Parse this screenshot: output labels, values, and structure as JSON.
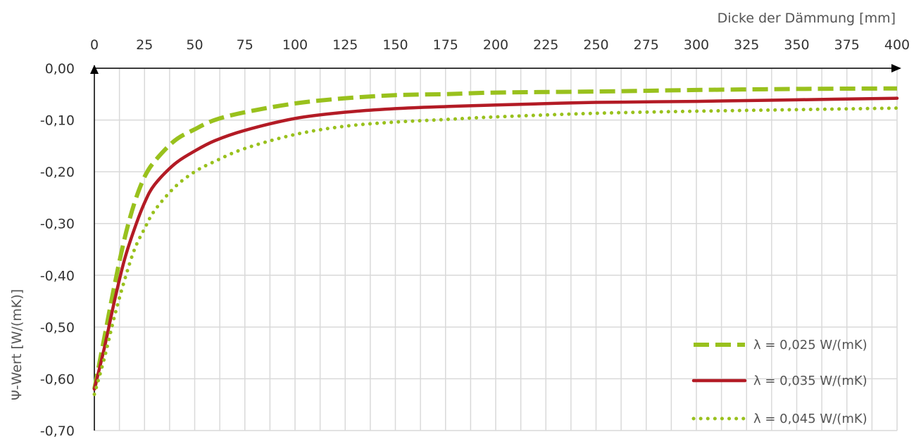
{
  "chart_data": {
    "type": "line",
    "xlabel": "Dicke der Dämmung [mm]",
    "ylabel": "Ψ-Wert [W/(mK)]",
    "xlim": [
      0,
      400
    ],
    "ylim": [
      -0.7,
      0.0
    ],
    "x_ticks": [
      "0",
      "25",
      "50",
      "75",
      "100",
      "125",
      "150",
      "175",
      "200",
      "225",
      "250",
      "275",
      "300",
      "325",
      "350",
      "375",
      "400"
    ],
    "y_ticks": [
      "0,00",
      "-0,10",
      "-0,20",
      "-0,30",
      "-0,40",
      "-0,50",
      "-0,60",
      "-0,70"
    ],
    "x_axis_position": "top",
    "grid": true,
    "legend_position": "bottom-right",
    "series": [
      {
        "name": "λ = 0,025 W/(mK)",
        "color": "#99c11d",
        "style": "dashed",
        "x": [
          0,
          5,
          10,
          15,
          20,
          25,
          30,
          40,
          50,
          60,
          75,
          100,
          125,
          150,
          175,
          200,
          250,
          300,
          350,
          400
        ],
        "y": [
          -0.62,
          -0.52,
          -0.42,
          -0.33,
          -0.26,
          -0.21,
          -0.18,
          -0.14,
          -0.118,
          -0.1,
          -0.085,
          -0.068,
          -0.058,
          -0.052,
          -0.05,
          -0.047,
          -0.045,
          -0.042,
          -0.04,
          -0.039
        ]
      },
      {
        "name": "λ = 0,035 W/(mK)",
        "color": "#b31b25",
        "style": "solid",
        "x": [
          0,
          5,
          10,
          15,
          20,
          25,
          30,
          40,
          50,
          60,
          75,
          100,
          125,
          150,
          175,
          200,
          250,
          300,
          350,
          400
        ],
        "y": [
          -0.62,
          -0.54,
          -0.45,
          -0.37,
          -0.31,
          -0.26,
          -0.225,
          -0.185,
          -0.16,
          -0.14,
          -0.12,
          -0.097,
          -0.085,
          -0.078,
          -0.074,
          -0.071,
          -0.066,
          -0.064,
          -0.061,
          -0.058
        ]
      },
      {
        "name": "λ = 0,045 W/(mK)",
        "color": "#99c11d",
        "style": "dotted",
        "x": [
          0,
          5,
          10,
          15,
          20,
          25,
          30,
          40,
          50,
          60,
          75,
          100,
          125,
          150,
          175,
          200,
          250,
          300,
          350,
          400
        ],
        "y": [
          -0.63,
          -0.56,
          -0.48,
          -0.41,
          -0.35,
          -0.31,
          -0.275,
          -0.23,
          -0.2,
          -0.18,
          -0.155,
          -0.128,
          -0.112,
          -0.104,
          -0.099,
          -0.094,
          -0.087,
          -0.083,
          -0.08,
          -0.077
        ]
      }
    ]
  }
}
